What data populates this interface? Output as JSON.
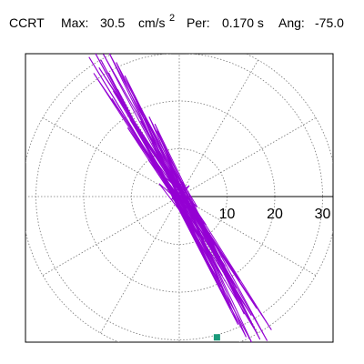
{
  "header": {
    "station": "CCRT",
    "max_label": "Max:",
    "max_value": "30.5",
    "max_unit_base": "cm/s",
    "max_unit_exp": "2",
    "period_label": "Per:",
    "period_value": "0.170 s",
    "angle_label": "Ang:",
    "angle_value": "-75.0"
  },
  "colors": {
    "trace": "#9400d3",
    "grid": "#777777",
    "axis": "#000000",
    "frame": "#000000",
    "peak_marker": "#1a9a7a"
  },
  "chart_data": {
    "type": "scatter",
    "title": "",
    "xlabel": "",
    "ylabel": "",
    "rings": [
      10,
      20,
      30
    ],
    "tick_labels": [
      "10",
      "20",
      "30"
    ],
    "spoke_angles_deg": [
      0,
      30,
      60,
      90,
      120,
      150,
      180,
      210,
      240,
      270,
      300,
      330
    ],
    "r_max": 33,
    "grid": true,
    "series": [
      {
        "x": [
          0,
          1.2,
          -0.8,
          2.1,
          -1.6,
          0.6,
          3.8,
          -2.9,
          1.5,
          -4.2,
          5.6,
          -3.1,
          2.6,
          -6.4,
          4.9,
          -1.8,
          7.3,
          -5.7,
          3.2,
          -8.1,
          6.6,
          -2.4,
          9.4,
          -7.2,
          4.1,
          -10.6,
          8.7,
          -3.3,
          11.8,
          -9.5,
          5.4,
          -12.9,
          10.7,
          -4.6,
          13.6,
          -11.4,
          6.2,
          -14.8,
          12.3,
          -5.1,
          15.7,
          -13.2,
          7.1,
          -16.4,
          14.0,
          -6.3,
          16.9,
          -14.7,
          8.2,
          -17.8,
          15.2,
          -7.4,
          18.4,
          -15.9,
          9.0,
          -18.9,
          16.3,
          -8.1,
          19.3,
          -16.8,
          9.6,
          -17.9,
          15.1,
          -7.7,
          16.2,
          -13.8,
          6.3,
          -14.1,
          12.0,
          -5.2,
          12.7,
          -10.3,
          4.1,
          -10.8,
          8.6,
          -2.9,
          8.3,
          -6.5,
          1.8,
          -5.9,
          4.4,
          -0.9,
          3.6,
          -2.2,
          0.3
        ],
        "y": [
          0,
          0.9,
          -1.4,
          2.3,
          -0.6,
          3.1,
          -2.2,
          4.0,
          -4.8,
          2.7,
          -5.9,
          6.8,
          -3.5,
          7.6,
          -8.9,
          5.1,
          -10.2,
          11.3,
          -6.4,
          12.9,
          -13.8,
          8.2,
          -15.1,
          16.4,
          -9.7,
          17.6,
          -18.9,
          11.0,
          -20.3,
          21.2,
          -12.6,
          22.4,
          -23.5,
          13.8,
          -24.6,
          25.3,
          -14.5,
          25.9,
          -26.8,
          15.2,
          -27.6,
          28.1,
          -16.1,
          28.6,
          -29.4,
          16.7,
          -29.9,
          30.1,
          -17.0,
          30.4,
          -30.6,
          17.3,
          -30.2,
          29.8,
          -16.6,
          29.2,
          -28.7,
          15.8,
          -27.9,
          27.0,
          -14.6,
          25.8,
          -24.9,
          13.1,
          -23.4,
          22.1,
          -11.6,
          20.5,
          -19.2,
          10.0,
          -17.6,
          16.1,
          -8.3,
          14.4,
          -12.8,
          6.5,
          -11.0,
          9.6,
          -4.7,
          7.9,
          -6.1,
          2.8,
          -4.2,
          2.6,
          -0.7
        ]
      }
    ],
    "peak": {
      "magnitude": 30.5,
      "angle_deg": -75.0
    }
  }
}
